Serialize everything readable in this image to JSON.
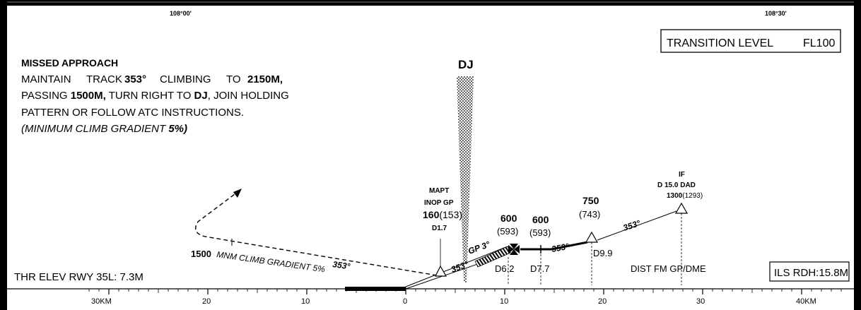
{
  "header": {
    "lon_left": "108°00'",
    "lon_right": "108°30'"
  },
  "transition": {
    "label": "TRANSITION LEVEL",
    "value": "FL100"
  },
  "missed_approach": {
    "title": "MISSED APPROACH",
    "l1_a": "MAINTAIN",
    "l1_b": "TRACK",
    "l1_c": "353°",
    "l1_d": "CLIMBING",
    "l1_e": "TO",
    "l1_f": "2150M,",
    "l2_a": "PASSING ",
    "l2_b": "1500M,",
    "l2_c": " TURN RIGHT TO ",
    "l2_d": "DJ",
    "l2_e": ", JOIN HOLDING",
    "l3": "PATTERN OR FOLLOW ATC INSTRUCTIONS.",
    "l4_a": "(MINIMUM CLIMB GRADIENT ",
    "l4_b": "5%)"
  },
  "navaid": {
    "label": "DJ"
  },
  "fixes": {
    "mapt": {
      "l1": "MAPT",
      "l2": "INOP GP",
      "alt": "160",
      "hgt": "(153)",
      "dist": "D1.7"
    },
    "fix600a": {
      "alt": "600",
      "hgt": "(593)",
      "dist": "D6.2"
    },
    "fix600b": {
      "alt": "600",
      "hgt": "(593)",
      "dist": "D7.7"
    },
    "fix750": {
      "alt": "750",
      "hgt": "(743)",
      "dist": "D9.9"
    },
    "iaf": {
      "l1": "IF",
      "l2": "D 15.0 DAD",
      "alt": "1300",
      "hgt": "(1293)"
    }
  },
  "tracks": {
    "seg1": "353°",
    "seg2": "353°",
    "seg3": "353°",
    "seg4": "353°",
    "missed": "353°",
    "gp": "GP 3°"
  },
  "climb": {
    "alt": "1500",
    "text": "MNM CLIMB GRADIENT 5%"
  },
  "footer": {
    "thr_elev": "THR ELEV RWY 35L: 7.3M",
    "dist_note": "DIST FM GP/DME",
    "rdh": "ILS RDH:15.8M"
  },
  "scale": {
    "labels": [
      "30KM",
      "20",
      "10",
      "0",
      "10",
      "20",
      "30",
      "40KM"
    ]
  }
}
